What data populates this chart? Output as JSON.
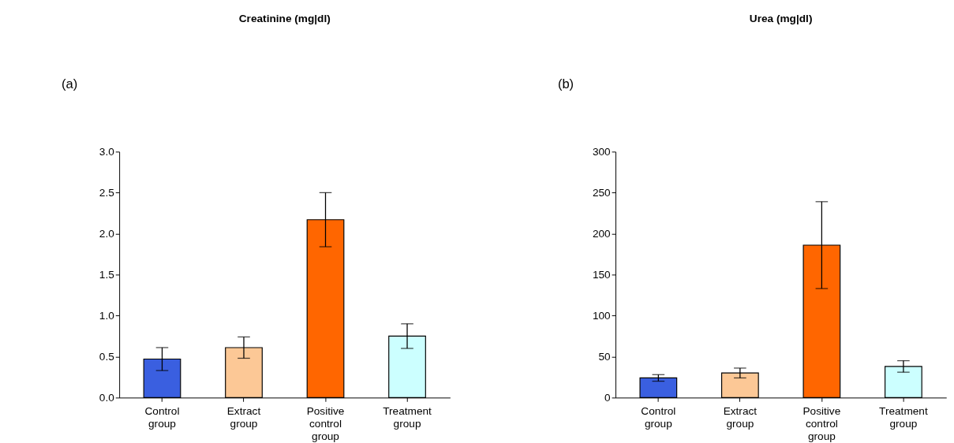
{
  "chart_data": [
    {
      "type": "bar",
      "title": "Creatinine (mg|dl)",
      "annotations": [
        "(a)"
      ],
      "categories": [
        "Control group",
        "Extract group",
        "Positive control group",
        "Treatment group"
      ],
      "values": [
        0.47,
        0.61,
        2.17,
        0.75
      ],
      "errors": [
        0.14,
        0.13,
        0.33,
        0.15
      ],
      "colors": [
        "#3a5fe0",
        "#fcc896",
        "#ff6600",
        "#ccffff"
      ],
      "ylim": [
        0,
        3
      ],
      "yticks": [
        {
          "value": 0,
          "label": "0.0"
        },
        0.5,
        {
          "value": 1,
          "label": "1.0"
        },
        1.5,
        {
          "value": 2,
          "label": "2.0"
        },
        2.5,
        {
          "value": 3,
          "label": "3.0"
        }
      ],
      "grid": false,
      "legend": false
    },
    {
      "type": "bar",
      "title": "Urea (mg|dl)",
      "annotations": [
        "(b)"
      ],
      "categories": [
        "Control group",
        "Extract group",
        "Positive control group",
        "Treatment group"
      ],
      "values": [
        24,
        30,
        186,
        38
      ],
      "errors": [
        4,
        6,
        53,
        7
      ],
      "colors": [
        "#3a5fe0",
        "#fcc896",
        "#ff6600",
        "#ccffff"
      ],
      "ylim": [
        0,
        300
      ],
      "yticks": [
        0,
        50,
        100,
        150,
        200,
        250,
        300
      ],
      "grid": false,
      "legend": false
    }
  ]
}
